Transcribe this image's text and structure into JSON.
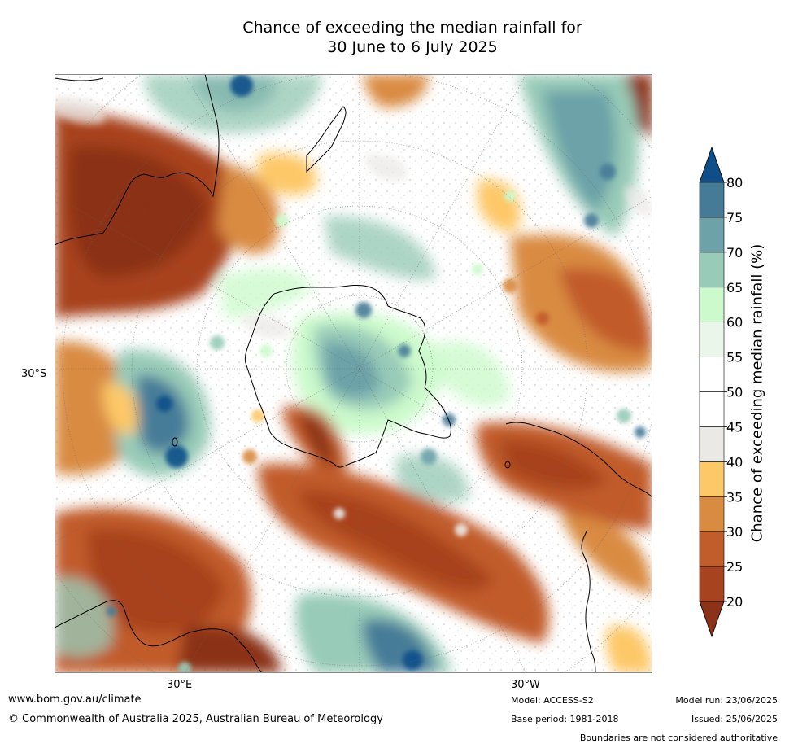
{
  "title": {
    "line1": "Chance of exceeding the median rainfall for",
    "line2": "30 June to 6 July 2025"
  },
  "map": {
    "lat_label": "30°S",
    "lon_labels": [
      "30°E",
      "30°W"
    ]
  },
  "colorbar": {
    "label": "Chance of exceeding median rainfall (%)",
    "ticks": [
      "20",
      "25",
      "30",
      "35",
      "40",
      "45",
      "50",
      "55",
      "60",
      "65",
      "70",
      "75",
      "80"
    ],
    "colors": [
      "#8b3218",
      "#a8431f",
      "#c15c2b",
      "#d98b42",
      "#fdc868",
      "#ebe9e6",
      "#ffffff",
      "#ffffff",
      "#eaf6ea",
      "#ccfacc",
      "#98cbb8",
      "#6ca2a8",
      "#467b98",
      "#0e4f8a"
    ]
  },
  "footer": {
    "website": "www.bom.gov.au/climate",
    "copyright": "© Commonwealth of Australia 2025, Australian Bureau of Meteorology",
    "model": "Model: ACCESS-S2",
    "base_period": "Base period: 1981-2018",
    "model_run": "Model run: 23/06/2025",
    "issued": "Issued: 25/06/2025",
    "disclaimer": "Boundaries are not considered authoritative"
  }
}
